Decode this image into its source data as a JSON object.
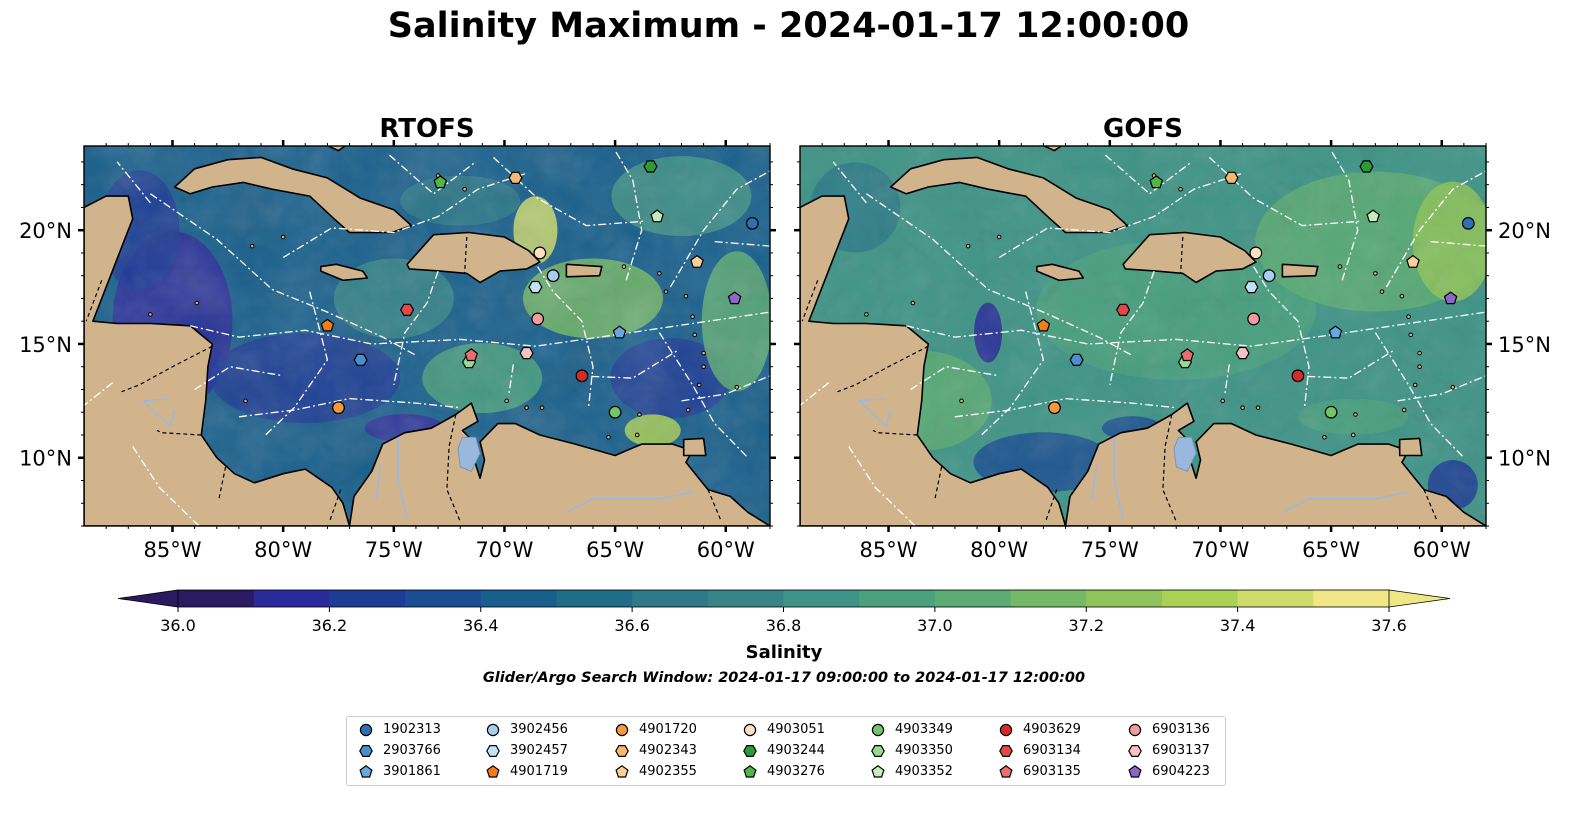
{
  "title": "Salinity Maximum - 2024-01-17 12:00:00",
  "panels": [
    {
      "title": "RTOFS",
      "model": "rtofs"
    },
    {
      "title": "GOFS",
      "model": "gofs"
    }
  ],
  "map": {
    "lon_range": [
      -89,
      -58
    ],
    "lat_range": [
      7,
      23.7
    ],
    "lon_ticks": [
      {
        "v": -85,
        "label": "85°W"
      },
      {
        "v": -80,
        "label": "80°W"
      },
      {
        "v": -75,
        "label": "75°W"
      },
      {
        "v": -70,
        "label": "70°W"
      },
      {
        "v": -65,
        "label": "65°W"
      },
      {
        "v": -60,
        "label": "60°W"
      }
    ],
    "lat_ticks": [
      {
        "v": 20,
        "label": "20°N"
      },
      {
        "v": 15,
        "label": "15°N"
      },
      {
        "v": 10,
        "label": "10°N"
      }
    ],
    "land_color": "#d2b48c",
    "lake_color": "#9ab8dd",
    "eez_line_color": "#ffffff"
  },
  "colorbar": {
    "label": "Salinity",
    "vmin": 36.0,
    "vmax": 37.6,
    "step": 0.1,
    "ticks": [
      "36.0",
      "36.2",
      "36.4",
      "36.6",
      "36.8",
      "37.0",
      "37.2",
      "37.4",
      "37.6"
    ],
    "colormap": "haline",
    "colors": [
      "#2a1a62",
      "#2a2a9a",
      "#1e3c96",
      "#1a4e92",
      "#175f8c",
      "#1f6d89",
      "#2d7a88",
      "#368688",
      "#3f9487",
      "#4aa17e",
      "#5cad73",
      "#74b966",
      "#8ec45b",
      "#abd056",
      "#cfdc6c",
      "#f1e686"
    ]
  },
  "search_window": "Glider/Argo Search Window: 2024-01-17 09:00:00 to 2024-01-17 12:00:00",
  "floats": [
    {
      "id": "1902313",
      "marker": "circle",
      "color": "#2f6fb3",
      "lon": -58.8,
      "lat": 20.3
    },
    {
      "id": "2903766",
      "marker": "hexagon",
      "color": "#4a8fd0",
      "lon": -76.5,
      "lat": 14.3
    },
    {
      "id": "3901861",
      "marker": "pentagon",
      "color": "#6aa7de",
      "lon": -64.8,
      "lat": 15.5
    },
    {
      "id": "3902456",
      "marker": "circle",
      "color": "#a6cfee",
      "lon": -67.8,
      "lat": 18.0
    },
    {
      "id": "3902457",
      "marker": "hexagon",
      "color": "#c3e2f7",
      "lon": -68.6,
      "lat": 17.5
    },
    {
      "id": "4901720",
      "marker": "circle",
      "color": "#f59a3c",
      "lon": -77.5,
      "lat": 12.2
    },
    {
      "id": "4902343",
      "marker": "hexagon",
      "color": "#f9b870",
      "lon": -69.5,
      "lat": 22.3
    },
    {
      "id": "4902355",
      "marker": "pentagon",
      "color": "#fbd09c",
      "lon": -61.3,
      "lat": 18.6
    },
    {
      "id": "4903051",
      "marker": "circle",
      "color": "#fde0c0",
      "lon": -68.4,
      "lat": 19.0
    },
    {
      "id": "4903244",
      "marker": "hexagon",
      "color": "#2e9a36",
      "lon": -63.4,
      "lat": 22.8
    },
    {
      "id": "4903276",
      "marker": "pentagon",
      "color": "#52b548",
      "lon": -72.9,
      "lat": 22.1
    },
    {
      "id": "4903349",
      "marker": "circle",
      "color": "#72c56a",
      "lon": -65.0,
      "lat": 12.0
    },
    {
      "id": "4903350",
      "marker": "hexagon",
      "color": "#98d890",
      "lon": -71.6,
      "lat": 14.2
    },
    {
      "id": "4903352",
      "marker": "pentagon",
      "color": "#c4ecbd",
      "lon": -63.1,
      "lat": 20.6
    },
    {
      "id": "4903629",
      "marker": "circle",
      "color": "#d42a2a",
      "lon": -66.5,
      "lat": 13.6
    },
    {
      "id": "6903134",
      "marker": "hexagon",
      "color": "#e24848",
      "lon": -74.4,
      "lat": 16.5
    },
    {
      "id": "6903135",
      "marker": "pentagon",
      "color": "#ea6e6e",
      "lon": -71.5,
      "lat": 14.5
    },
    {
      "id": "6903136",
      "marker": "circle",
      "color": "#f29c9c",
      "lon": -68.5,
      "lat": 16.1
    },
    {
      "id": "6903137",
      "marker": "hexagon",
      "color": "#f8c2c2",
      "lon": -69.0,
      "lat": 14.6
    },
    {
      "id": "6904223",
      "marker": "pentagon",
      "color": "#8d67c8",
      "lon": -59.6,
      "lat": 17.0
    },
    {
      "id": "4901719",
      "marker": "pentagon",
      "color": "#f57d18",
      "lon": -78.0,
      "lat": 15.8
    }
  ],
  "legend_order": [
    "1902313",
    "2903766",
    "3901861",
    "3902456",
    "3902457",
    "4901719",
    "4901720",
    "4902343",
    "4902355",
    "4903051",
    "4903244",
    "4903276",
    "4903349",
    "4903350",
    "4903352",
    "4903629",
    "6903134",
    "6903135",
    "6903136",
    "6903137",
    "6904223"
  ]
}
